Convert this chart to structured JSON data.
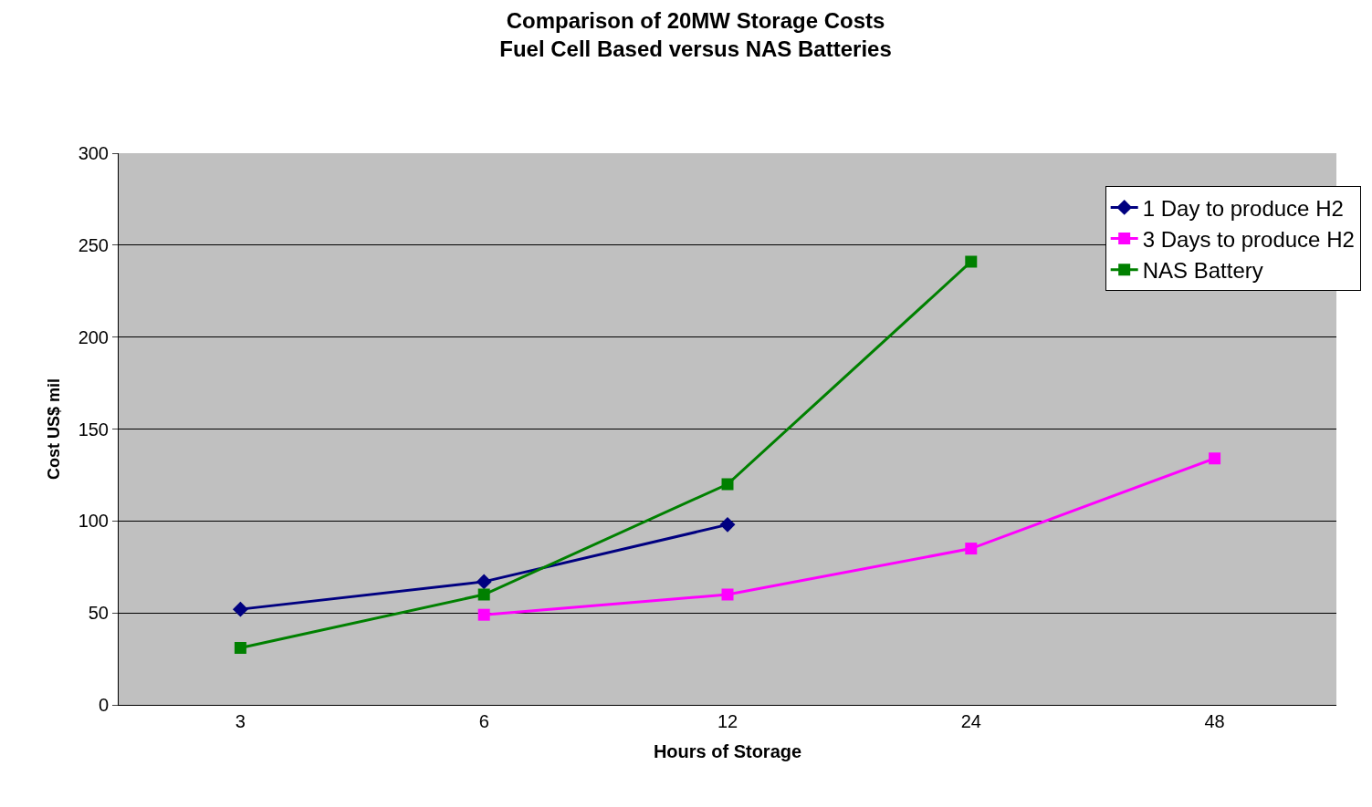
{
  "chart_data": {
    "type": "line",
    "title": "Comparison of 20MW Storage Costs\nFuel Cell Based versus NAS Batteries",
    "xlabel": "Hours of Storage",
    "ylabel": "Cost US$ mil",
    "categories": [
      "3",
      "6",
      "12",
      "24",
      "48"
    ],
    "series": [
      {
        "name": "1 Day to produce H2",
        "color": "#000080",
        "marker": "diamond",
        "values": [
          52,
          67,
          98,
          null,
          null
        ]
      },
      {
        "name": "3 Days to produce H2",
        "color": "#ff00ff",
        "marker": "square",
        "values": [
          null,
          49,
          60,
          85,
          134
        ]
      },
      {
        "name": "NAS Battery",
        "color": "#008000",
        "marker": "square",
        "values": [
          31,
          60,
          120,
          241,
          null
        ]
      }
    ],
    "ylim": [
      0,
      300
    ],
    "yticks": [
      0,
      50,
      100,
      150,
      200,
      250,
      300
    ],
    "grid": "y",
    "legend": "top right",
    "line_style": "solid"
  }
}
